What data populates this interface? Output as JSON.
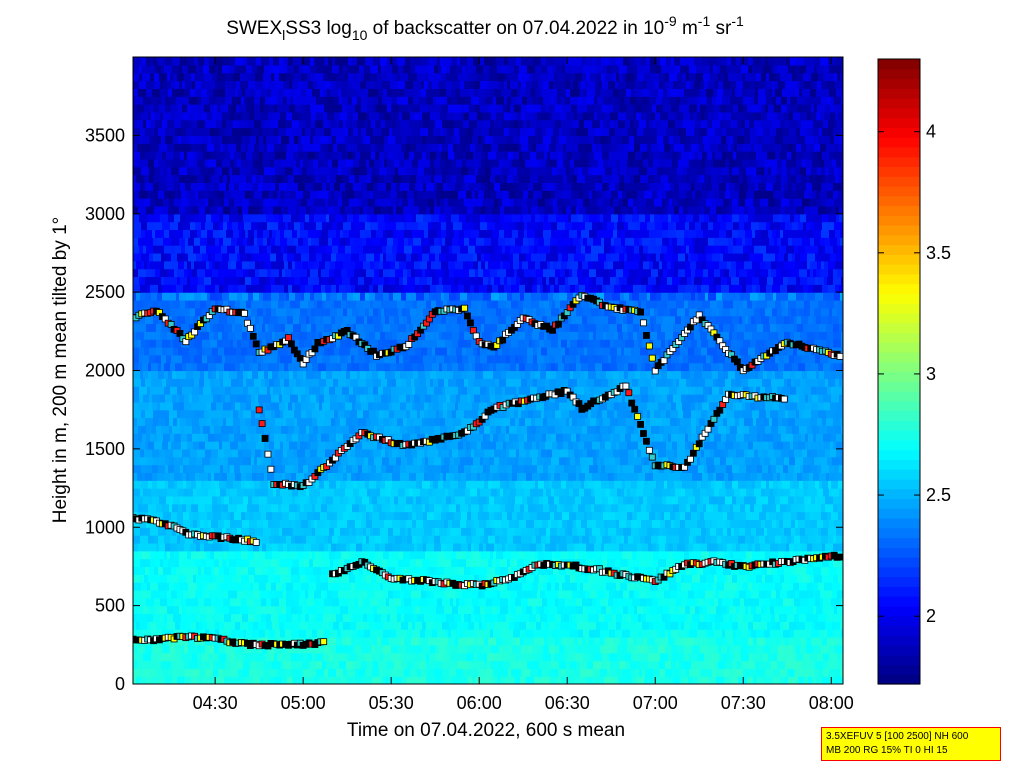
{
  "chart_data": {
    "type": "heatmap",
    "title": {
      "prefix": "SWEX",
      "prefix_sub": "l",
      "main": "SS3 log",
      "main_sub": "10",
      "mid": " of backscatter on 07.04.2022 in 10",
      "exp1": "-9",
      "unit1": " m",
      "exp2": "-1",
      "unit2": " sr",
      "exp3": "-1"
    },
    "xlabel": "Time on 07.04.2022, 600 s mean",
    "ylabel": "Height in m, 200 m mean tilted by 1°",
    "x_start": "04:02",
    "x_end": "08:04",
    "x_ticks": [
      "04:30",
      "05:00",
      "05:30",
      "06:00",
      "06:30",
      "07:00",
      "07:30",
      "08:00"
    ],
    "y_range": [
      0,
      4000
    ],
    "y_ticks": [
      0,
      500,
      1000,
      1500,
      2000,
      2500,
      3000,
      3500
    ],
    "colorbar": {
      "range": [
        1.72,
        4.3
      ],
      "ticks": [
        2,
        2.5,
        3,
        3.5,
        4
      ],
      "tick_labels": [
        "2",
        "2.5",
        "3",
        "3.5",
        "4"
      ],
      "colormap": "jet"
    },
    "field_levels": [
      {
        "height_max": 300,
        "value": 2.75
      },
      {
        "height_max": 850,
        "value": 2.7
      },
      {
        "height_max": 1300,
        "value": 2.55
      },
      {
        "height_max": 2000,
        "value": 2.45
      },
      {
        "height_max": 2500,
        "value": 2.33
      },
      {
        "height_max": 3000,
        "value": 2.05
      },
      {
        "height_max": 4000,
        "value": 1.88
      }
    ],
    "series": [
      {
        "points": [
          [
            "04:02",
            280
          ],
          [
            "04:10",
            285
          ],
          [
            "04:20",
            300
          ],
          [
            "04:30",
            290
          ],
          [
            "04:40",
            255
          ],
          [
            "04:50",
            250
          ],
          [
            "05:00",
            255
          ],
          [
            "05:08",
            265
          ]
        ]
      },
      {
        "points": [
          [
            "04:02",
            1060
          ],
          [
            "04:10",
            1040
          ],
          [
            "04:15",
            1010
          ],
          [
            "04:20",
            960
          ],
          [
            "04:30",
            940
          ],
          [
            "04:40",
            920
          ],
          [
            "04:45",
            900
          ]
        ]
      },
      {
        "points": [
          [
            "05:10",
            700
          ],
          [
            "05:15",
            730
          ],
          [
            "05:20",
            780
          ],
          [
            "05:30",
            680
          ],
          [
            "05:40",
            660
          ],
          [
            "05:50",
            640
          ],
          [
            "06:00",
            630
          ],
          [
            "06:10",
            670
          ],
          [
            "06:20",
            760
          ],
          [
            "06:30",
            760
          ],
          [
            "06:40",
            730
          ],
          [
            "06:50",
            690
          ],
          [
            "07:00",
            660
          ],
          [
            "07:10",
            760
          ],
          [
            "07:20",
            780
          ],
          [
            "07:30",
            750
          ],
          [
            "07:40",
            770
          ],
          [
            "07:50",
            790
          ],
          [
            "08:04",
            820
          ]
        ]
      },
      {
        "points": [
          [
            "04:02",
            2340
          ],
          [
            "04:10",
            2380
          ],
          [
            "04:20",
            2190
          ],
          [
            "04:30",
            2400
          ],
          [
            "04:40",
            2360
          ],
          [
            "04:45",
            2110
          ],
          [
            "04:55",
            2200
          ],
          [
            "05:00",
            2050
          ],
          [
            "05:05",
            2170
          ],
          [
            "05:15",
            2250
          ],
          [
            "05:25",
            2100
          ],
          [
            "05:35",
            2150
          ],
          [
            "05:45",
            2380
          ],
          [
            "05:55",
            2390
          ],
          [
            "06:00",
            2180
          ],
          [
            "06:05",
            2150
          ],
          [
            "06:15",
            2330
          ],
          [
            "06:25",
            2260
          ],
          [
            "06:35",
            2480
          ],
          [
            "06:45",
            2400
          ],
          [
            "06:55",
            2380
          ],
          [
            "07:00",
            2000
          ],
          [
            "07:15",
            2350
          ],
          [
            "07:30",
            2000
          ],
          [
            "07:45",
            2180
          ],
          [
            "07:55",
            2130
          ],
          [
            "08:04",
            2090
          ]
        ]
      },
      {
        "points": [
          [
            "04:45",
            1750
          ],
          [
            "04:50",
            1280
          ],
          [
            "05:00",
            1260
          ],
          [
            "05:20",
            1600
          ],
          [
            "05:35",
            1520
          ],
          [
            "05:55",
            1600
          ],
          [
            "06:05",
            1760
          ],
          [
            "06:30",
            1870
          ],
          [
            "06:35",
            1760
          ],
          [
            "06:50",
            1900
          ],
          [
            "07:00",
            1400
          ],
          [
            "07:10",
            1380
          ],
          [
            "07:25",
            1850
          ],
          [
            "07:35",
            1830
          ],
          [
            "07:45",
            1820
          ]
        ]
      }
    ]
  },
  "info_box": {
    "line1": "3.5XEFUV 5 [100 2500] NH 600",
    "line2": "MB 200 RG 15% TI 0 HI 15"
  }
}
